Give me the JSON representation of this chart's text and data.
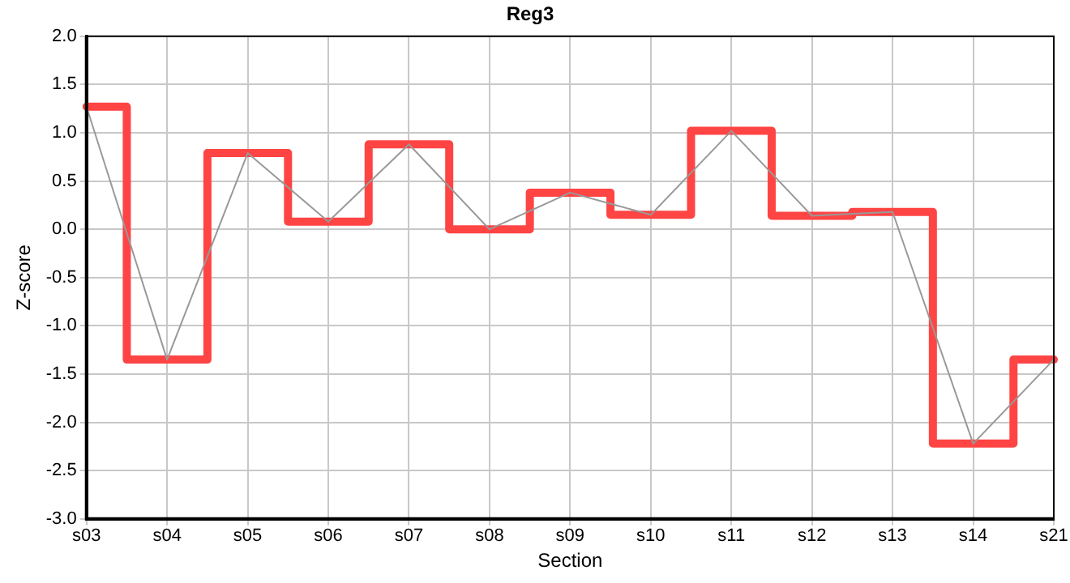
{
  "chart_data": {
    "type": "step",
    "title": "Reg3",
    "xlabel": "Section",
    "ylabel": "Z-score",
    "categories": [
      "s03",
      "s04",
      "s05",
      "s06",
      "s07",
      "s08",
      "s09",
      "s10",
      "s11",
      "s12",
      "s13",
      "s14",
      "s21"
    ],
    "series": [
      {
        "color": "#ff4444",
        "values": [
          1.27,
          -1.35,
          0.79,
          0.08,
          0.88,
          0.0,
          0.38,
          0.15,
          1.02,
          0.14,
          0.18,
          -2.22,
          -1.35
        ]
      },
      {
        "type": "line",
        "color": "#999999",
        "values": [
          1.27,
          -1.35,
          0.79,
          0.08,
          0.88,
          0.0,
          0.38,
          0.15,
          1.02,
          0.14,
          0.18,
          -2.22,
          -1.35
        ]
      }
    ],
    "ylim": [
      -3,
      2
    ],
    "yticks": [
      {
        "value": -3,
        "label": "-3.0"
      },
      -2.5,
      {
        "value": -2,
        "label": "-2.0"
      },
      -1.5,
      {
        "value": -1,
        "label": "-1.0"
      },
      -0.5,
      {
        "value": 0,
        "label": "0.0"
      },
      0.5,
      {
        "value": 1,
        "label": "1.0"
      },
      1.5,
      {
        "value": 2,
        "label": "2.0"
      }
    ],
    "grid": true,
    "legend": false,
    "marker": "none",
    "line_style": "solid"
  }
}
